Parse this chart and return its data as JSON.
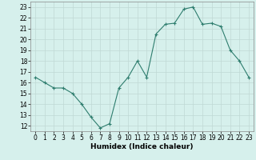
{
  "x": [
    0,
    1,
    2,
    3,
    4,
    5,
    6,
    7,
    8,
    9,
    10,
    11,
    12,
    13,
    14,
    15,
    16,
    17,
    18,
    19,
    20,
    21,
    22,
    23
  ],
  "y": [
    16.5,
    16.0,
    15.5,
    15.5,
    15.0,
    14.0,
    12.8,
    11.8,
    12.2,
    15.5,
    16.5,
    18.0,
    16.5,
    20.5,
    21.4,
    21.5,
    22.8,
    23.0,
    21.4,
    21.5,
    21.2,
    19.0,
    18.0,
    16.5
  ],
  "line_color": "#2e7d6e",
  "marker": "+",
  "bg_color": "#d6f0ec",
  "grid_color": "#c0d8d4",
  "xlabel": "Humidex (Indice chaleur)",
  "xlim": [
    -0.5,
    23.5
  ],
  "ylim": [
    11.5,
    23.5
  ],
  "yticks": [
    12,
    13,
    14,
    15,
    16,
    17,
    18,
    19,
    20,
    21,
    22,
    23
  ],
  "xticks": [
    0,
    1,
    2,
    3,
    4,
    5,
    6,
    7,
    8,
    9,
    10,
    11,
    12,
    13,
    14,
    15,
    16,
    17,
    18,
    19,
    20,
    21,
    22,
    23
  ],
  "tick_fontsize": 5.5,
  "xlabel_fontsize": 6.5
}
